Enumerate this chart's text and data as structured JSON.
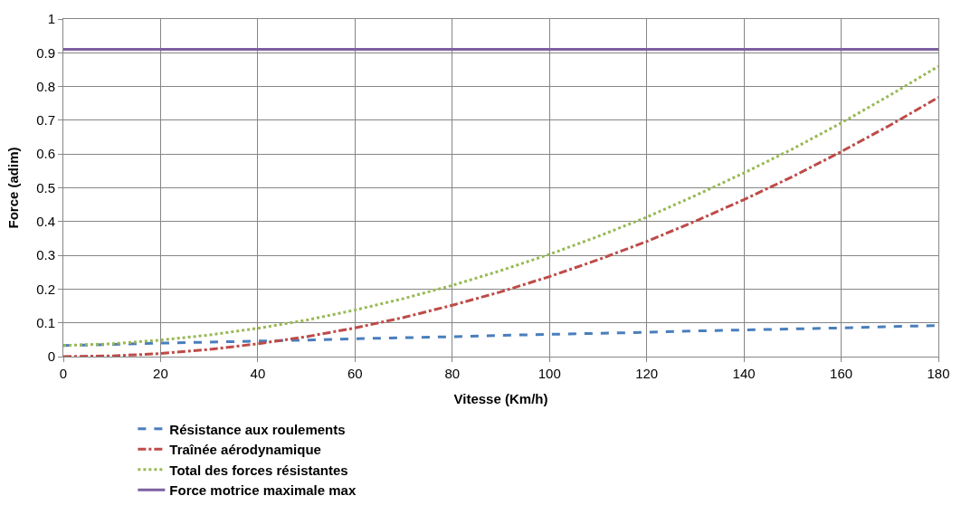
{
  "chart_data": {
    "type": "line",
    "xlabel": "Vitesse (Km/h)",
    "ylabel": "Force (adim)",
    "x": [
      0,
      10,
      20,
      30,
      40,
      50,
      60,
      70,
      80,
      90,
      100,
      110,
      120,
      130,
      140,
      150,
      160,
      170,
      180
    ],
    "series": [
      {
        "name": "Résistance aux roulements",
        "color": "#4a7ebb",
        "line_style": "dashed",
        "values": [
          0.033,
          0.036,
          0.04,
          0.043,
          0.046,
          0.049,
          0.053,
          0.056,
          0.059,
          0.063,
          0.066,
          0.069,
          0.072,
          0.076,
          0.079,
          0.082,
          0.085,
          0.089,
          0.092
        ]
      },
      {
        "name": "Traînée aérodynamique",
        "color": "#be4b48",
        "line_style": "dashdot",
        "values": [
          0,
          0.002,
          0.009,
          0.021,
          0.038,
          0.059,
          0.085,
          0.116,
          0.152,
          0.192,
          0.237,
          0.287,
          0.341,
          0.401,
          0.465,
          0.533,
          0.607,
          0.685,
          0.768
        ]
      },
      {
        "name": "Total des forces résistantes",
        "color": "#98b954",
        "line_style": "dotted",
        "values": [
          0.033,
          0.038,
          0.049,
          0.064,
          0.084,
          0.108,
          0.138,
          0.172,
          0.211,
          0.255,
          0.303,
          0.356,
          0.413,
          0.477,
          0.544,
          0.615,
          0.692,
          0.774,
          0.86
        ]
      },
      {
        "name": "Force motrice maximale max",
        "color": "#7d60a0",
        "line_style": "solid",
        "values": [
          0.91,
          0.91,
          0.91,
          0.91,
          0.91,
          0.91,
          0.91,
          0.91,
          0.91,
          0.91,
          0.91,
          0.91,
          0.91,
          0.91,
          0.91,
          0.91,
          0.91,
          0.91,
          0.91
        ]
      }
    ],
    "xlim": [
      0,
      180
    ],
    "xticks": [
      0,
      20,
      40,
      60,
      80,
      100,
      120,
      140,
      160,
      180
    ],
    "ylim": [
      0,
      1
    ],
    "yticks": [
      0,
      0.1,
      0.2,
      0.3,
      0.4,
      0.5,
      0.6,
      0.7,
      0.8,
      0.9,
      1
    ],
    "grid": true,
    "legend": "bottom",
    "marker": "none"
  }
}
